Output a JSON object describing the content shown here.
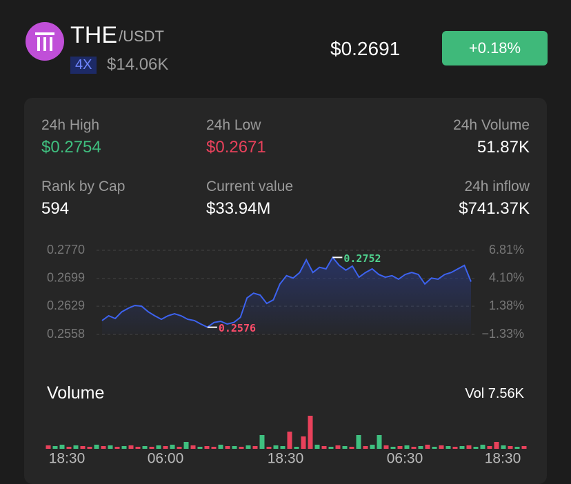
{
  "header": {
    "symbol": "THE",
    "quote": "/USDT",
    "leverage": "4X",
    "cap": "$14.06K",
    "price": "$0.2691",
    "change": "+0.18%"
  },
  "stats": [
    {
      "label": "24h High",
      "value": "$0.2754"
    },
    {
      "label": "24h Low",
      "value": "$0.2671"
    },
    {
      "label": "24h Volume",
      "value": "51.87K"
    },
    {
      "label": "Rank by Cap",
      "value": "594"
    },
    {
      "label": "Current value",
      "value": "$33.94M"
    },
    {
      "label": "24h inflow",
      "value": "$741.37K"
    }
  ],
  "price_chart": {
    "type": "line",
    "color": "#3d63f0",
    "values": [
      0.2593,
      0.2605,
      0.2598,
      0.2615,
      0.2624,
      0.2631,
      0.2629,
      0.2615,
      0.2605,
      0.2596,
      0.2605,
      0.261,
      0.2605,
      0.2596,
      0.2593,
      0.2584,
      0.2576,
      0.2588,
      0.2591,
      0.2584,
      0.2588,
      0.2601,
      0.265,
      0.2662,
      0.2657,
      0.2636,
      0.2645,
      0.2685,
      0.2706,
      0.27,
      0.2714,
      0.2746,
      0.2714,
      0.2727,
      0.2723,
      0.2752,
      0.2732,
      0.272,
      0.273,
      0.2702,
      0.2714,
      0.2723,
      0.2709,
      0.2702,
      0.2706,
      0.2697,
      0.2709,
      0.2714,
      0.2709,
      0.2685,
      0.27,
      0.2697,
      0.2709,
      0.2714,
      0.2723,
      0.2732,
      0.2691
    ],
    "ylim": [
      0.2558,
      0.277
    ],
    "yticks": [
      {
        "value": 0.277,
        "label": "0.2770"
      },
      0.2699,
      0.2629,
      0.2558
    ],
    "y2lim": [
      -1.33,
      6.81
    ],
    "y2ticks": [
      {
        "value": 6.81,
        "label": "6.81%"
      },
      {
        "value": 4.1,
        "label": "4.10%"
      },
      {
        "value": 1.38,
        "label": "1.38%"
      },
      {
        "value": -1.33,
        "label": "−1.33%"
      }
    ],
    "max": 0.2752,
    "min": 0.2576,
    "grid": true
  },
  "volume_chart": {
    "type": "bar",
    "title": "Volume",
    "total": "Vol 7.56K",
    "values": [
      5,
      4,
      6,
      3,
      5,
      4,
      3,
      6,
      4,
      5,
      3,
      4,
      5,
      3,
      4,
      3,
      5,
      4,
      6,
      3,
      10,
      5,
      3,
      4,
      3,
      6,
      4,
      4,
      3,
      5,
      4,
      20,
      3,
      5,
      4,
      25,
      3,
      18,
      48,
      6,
      4,
      3,
      5,
      4,
      3,
      20,
      4,
      6,
      20,
      5,
      3,
      4,
      5,
      3,
      4,
      6,
      3,
      5,
      4,
      3,
      4,
      5,
      3,
      6,
      4,
      10,
      5,
      4,
      3,
      4
    ],
    "colors": [
      "#e8415b",
      "#3fbf7f",
      "#3fbf7f",
      "#e8415b",
      "#3fbf7f",
      "#e8415b",
      "#e8415b",
      "#3fbf7f",
      "#e8415b",
      "#3fbf7f",
      "#e8415b",
      "#3fbf7f",
      "#e8415b",
      "#e8415b",
      "#3fbf7f",
      "#e8415b",
      "#3fbf7f",
      "#e8415b",
      "#3fbf7f",
      "#e8415b",
      "#3fbf7f",
      "#e8415b",
      "#3fbf7f",
      "#e8415b",
      "#e8415b",
      "#3fbf7f",
      "#e8415b",
      "#3fbf7f",
      "#e8415b",
      "#3fbf7f",
      "#e8415b",
      "#3fbf7f",
      "#e8415b",
      "#3fbf7f",
      "#3fbf7f",
      "#e8415b",
      "#3fbf7f",
      "#e8415b",
      "#e8415b",
      "#3fbf7f",
      "#e8415b",
      "#3fbf7f",
      "#e8415b",
      "#3fbf7f",
      "#e8415b",
      "#3fbf7f",
      "#e8415b",
      "#3fbf7f",
      "#3fbf7f",
      "#e8415b",
      "#3fbf7f",
      "#e8415b",
      "#3fbf7f",
      "#e8415b",
      "#3fbf7f",
      "#e8415b",
      "#3fbf7f",
      "#e8415b",
      "#3fbf7f",
      "#e8415b",
      "#3fbf7f",
      "#e8415b",
      "#3fbf7f",
      "#3fbf7f",
      "#e8415b",
      "#e8415b",
      "#3fbf7f",
      "#e8415b",
      "#3fbf7f",
      "#e8415b"
    ],
    "x_labels": [
      "18:30",
      "06:00",
      "18:30",
      "06:30",
      "18:30"
    ]
  }
}
